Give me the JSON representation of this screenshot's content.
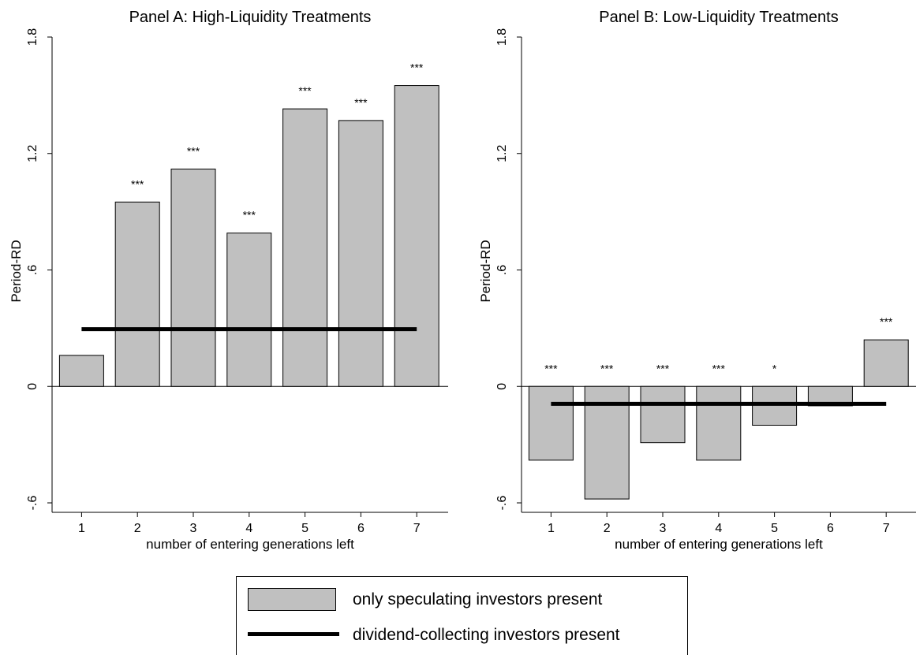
{
  "chart_data": [
    {
      "type": "bar",
      "title": "Panel A: High-Liquidity Treatments",
      "xlabel": "number of entering generations left",
      "ylabel": "",
      "ylim": [
        -0.6,
        1.8
      ],
      "yticks": [
        "1.8",
        "1.2",
        ".6",
        "0",
        "-.6"
      ],
      "categories": [
        "1",
        "2",
        "3",
        "4",
        "5",
        "6",
        "7"
      ],
      "series": [
        {
          "name": "only speculating investors present",
          "values": [
            0.16,
            0.95,
            1.12,
            0.79,
            1.43,
            1.37,
            1.55
          ]
        }
      ],
      "significance": [
        "",
        "***",
        "***",
        "***",
        "***",
        "***",
        "***"
      ],
      "reference_line": {
        "name": "dividend-collecting investors present",
        "value": 0.295
      },
      "grid": false
    },
    {
      "type": "bar",
      "title": "Panel B: Low-Liquidity Treatments",
      "xlabel": "number of entering generations left",
      "ylabel": "Period-RD",
      "ylim": [
        -0.6,
        1.8
      ],
      "yticks": [
        "1.8",
        "1.2",
        ".6",
        "0",
        "-.6"
      ],
      "categories": [
        "1",
        "2",
        "3",
        "4",
        "5",
        "6",
        "7"
      ],
      "series": [
        {
          "name": "only speculating investors present",
          "values": [
            -0.38,
            -0.58,
            -0.29,
            -0.38,
            -0.2,
            -0.1,
            0.24
          ]
        }
      ],
      "significance": [
        "***",
        "***",
        "***",
        "***",
        "*",
        "",
        "***"
      ],
      "reference_line": {
        "name": "dividend-collecting investors present",
        "value": -0.09
      },
      "grid": false
    }
  ],
  "shared": {
    "ylabel": "Period-RD"
  },
  "legend": {
    "bar_label": "only speculating investors present",
    "line_label": "dividend-collecting investors present"
  },
  "colors": {
    "bar_fill": "#c0c0c0",
    "bar_stroke": "#000000",
    "line": "#000000"
  }
}
